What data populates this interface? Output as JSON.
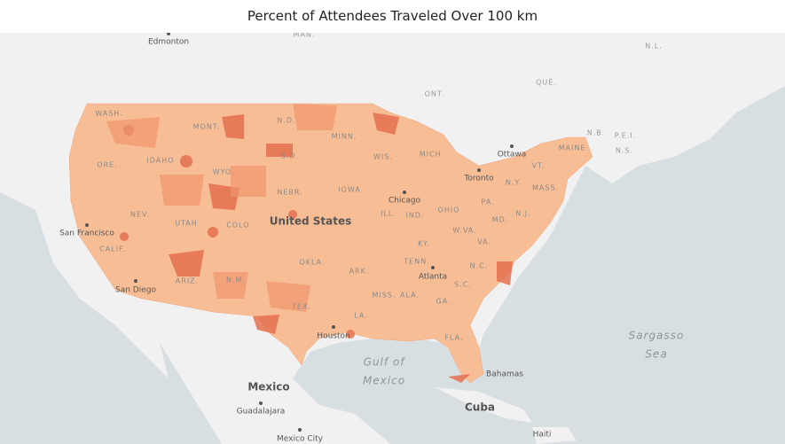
{
  "title": "Percent of Attendees Traveled Over 100 km",
  "labels": [
    {
      "text": "Edmonton",
      "kind": "city"
    },
    {
      "text": "MAN.",
      "kind": "region"
    },
    {
      "text": "N.L.",
      "kind": "region"
    },
    {
      "text": "ONT.",
      "kind": "region"
    },
    {
      "text": "QUÉ.",
      "kind": "region"
    },
    {
      "text": "WASH.",
      "kind": "state"
    },
    {
      "text": "MONT.",
      "kind": "state"
    },
    {
      "text": "N.D.",
      "kind": "state"
    },
    {
      "text": "MINN.",
      "kind": "state"
    },
    {
      "text": "IDAHO",
      "kind": "state"
    },
    {
      "text": "ORE.",
      "kind": "state"
    },
    {
      "text": "WYO.",
      "kind": "state"
    },
    {
      "text": "S.D.",
      "kind": "state"
    },
    {
      "text": "WIS.",
      "kind": "state"
    },
    {
      "text": "MICH.",
      "kind": "state"
    },
    {
      "text": "Ottawa",
      "kind": "city"
    },
    {
      "text": "N.B.",
      "kind": "region"
    },
    {
      "text": "P.E.I.",
      "kind": "region"
    },
    {
      "text": "N.S.",
      "kind": "region"
    },
    {
      "text": "MAINE",
      "kind": "state"
    },
    {
      "text": "VT.",
      "kind": "state"
    },
    {
      "text": "Toronto",
      "kind": "city"
    },
    {
      "text": "N.Y.",
      "kind": "state"
    },
    {
      "text": "MASS.",
      "kind": "state"
    },
    {
      "text": "NEBR.",
      "kind": "state"
    },
    {
      "text": "IOWA",
      "kind": "state"
    },
    {
      "text": "Chicago",
      "kind": "city"
    },
    {
      "text": "PA.",
      "kind": "state"
    },
    {
      "text": "N.J.",
      "kind": "state"
    },
    {
      "text": "NEV.",
      "kind": "state"
    },
    {
      "text": "UTAH",
      "kind": "state"
    },
    {
      "text": "COLO.",
      "kind": "state"
    },
    {
      "text": "United States",
      "kind": "country"
    },
    {
      "text": "ILL.",
      "kind": "state"
    },
    {
      "text": "IND.",
      "kind": "state"
    },
    {
      "text": "OHIO",
      "kind": "state"
    },
    {
      "text": "MD.",
      "kind": "state"
    },
    {
      "text": "San Francisco",
      "kind": "city"
    },
    {
      "text": "W.VA.",
      "kind": "state"
    },
    {
      "text": "VA.",
      "kind": "state"
    },
    {
      "text": "CALIF.",
      "kind": "state"
    },
    {
      "text": "KY.",
      "kind": "state"
    },
    {
      "text": "OKLA.",
      "kind": "state"
    },
    {
      "text": "ARK.",
      "kind": "state"
    },
    {
      "text": "TENN.",
      "kind": "state"
    },
    {
      "text": "N.C.",
      "kind": "state"
    },
    {
      "text": "ARIZ.",
      "kind": "state"
    },
    {
      "text": "N.M.",
      "kind": "state"
    },
    {
      "text": "San Diego",
      "kind": "city"
    },
    {
      "text": "Atlanta",
      "kind": "city"
    },
    {
      "text": "S.C.",
      "kind": "state"
    },
    {
      "text": "MISS.",
      "kind": "state"
    },
    {
      "text": "ALA.",
      "kind": "state"
    },
    {
      "text": "GA.",
      "kind": "state"
    },
    {
      "text": "TEX.",
      "kind": "state"
    },
    {
      "text": "LA.",
      "kind": "state"
    },
    {
      "text": "Houston",
      "kind": "city"
    },
    {
      "text": "FLA.",
      "kind": "state"
    },
    {
      "text": "Bahamas",
      "kind": "city"
    },
    {
      "text": "Mexico",
      "kind": "country"
    },
    {
      "text": "Cuba",
      "kind": "country"
    },
    {
      "text": "Guadalajara",
      "kind": "city"
    },
    {
      "text": "Mexico City",
      "kind": "city"
    },
    {
      "text": "Haiti",
      "kind": "city"
    }
  ],
  "water": [
    {
      "lines": [
        "Gulf of",
        "Mexico"
      ]
    },
    {
      "lines": [
        "Sargasso",
        "Sea"
      ]
    }
  ]
}
